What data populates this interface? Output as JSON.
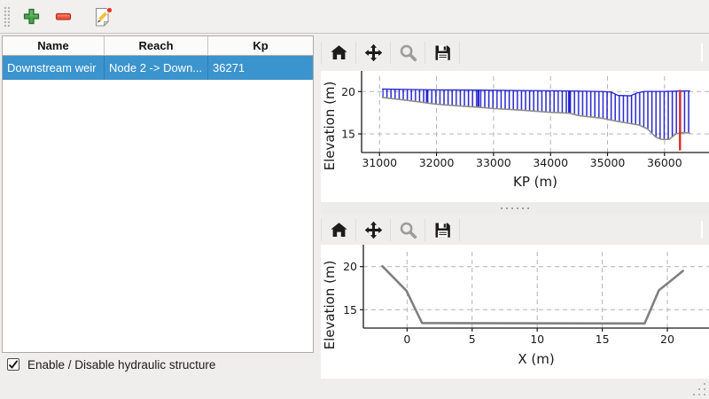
{
  "window": {
    "background": "#efeeec"
  },
  "main_toolbar": {
    "buttons": [
      {
        "label": "add",
        "icon": "plus-icon",
        "color": "#46a24c"
      },
      {
        "label": "remove",
        "icon": "minus-icon",
        "color": "#f05238"
      },
      {
        "label": "edit",
        "icon": "edit-icon",
        "color": "#f3c13a"
      }
    ]
  },
  "table": {
    "columns": [
      "Name",
      "Reach",
      "Kp"
    ],
    "rows": [
      {
        "name": "Downstream weir",
        "reach": "Node 2 -> Down...",
        "kp": "36271",
        "selected": true
      }
    ],
    "selection_color": "#3b94cd"
  },
  "footer": {
    "checkbox_label": "Enable / Disable hydraulic structure",
    "checked": true
  },
  "plot_toolbar": {
    "icons": [
      "home-icon",
      "pan-icon",
      "zoom-icon",
      "save-icon"
    ]
  },
  "chart_data": [
    {
      "type": "area",
      "title": "",
      "xlabel": "KP (m)",
      "ylabel": "Elevation (m)",
      "xticks": [
        31000,
        32000,
        33000,
        34000,
        35000,
        36000
      ],
      "yticks": [
        20,
        15
      ],
      "xlim": [
        30685,
        36780
      ],
      "ylim": [
        12.8,
        22.44
      ],
      "grid": true,
      "legend": "none",
      "hatch_color": "#2424cf",
      "fill_between": true,
      "series": [
        {
          "name": "section-top-profile",
          "color": "#2424cf",
          "width": 1.3,
          "points": [
            [
              31050,
              20.3
            ],
            [
              31500,
              20.25
            ],
            [
              32000,
              20.2
            ],
            [
              32735,
              20.18
            ],
            [
              33500,
              20.12
            ],
            [
              34325,
              20.08
            ],
            [
              34900,
              20.0
            ],
            [
              35060,
              19.95
            ],
            [
              35180,
              19.55
            ],
            [
              35400,
              19.5
            ],
            [
              35520,
              19.85
            ],
            [
              35650,
              20.02
            ],
            [
              36000,
              20.02
            ],
            [
              36200,
              20.05
            ],
            [
              36440,
              20.08
            ]
          ]
        },
        {
          "name": "bed-profile",
          "color": "#8e8e86",
          "width": 1.6,
          "points": [
            [
              31050,
              19.3
            ],
            [
              31500,
              18.95
            ],
            [
              32000,
              18.5
            ],
            [
              32300,
              18.35
            ],
            [
              32735,
              18.15
            ],
            [
              33000,
              18.0
            ],
            [
              33500,
              17.8
            ],
            [
              34000,
              17.55
            ],
            [
              34325,
              17.45
            ],
            [
              34500,
              17.15
            ],
            [
              34900,
              16.85
            ],
            [
              35200,
              16.45
            ],
            [
              35550,
              16.05
            ],
            [
              35700,
              15.6
            ],
            [
              35850,
              14.6
            ],
            [
              35950,
              14.35
            ],
            [
              36080,
              14.35
            ],
            [
              36200,
              15.0
            ],
            [
              36320,
              15.15
            ],
            [
              36440,
              15.1
            ]
          ]
        }
      ],
      "section_lines": [
        [
          31830,
          20.22,
          18.6
        ],
        [
          32735,
          20.18,
          18.15
        ],
        [
          34325,
          20.08,
          17.45
        ]
      ],
      "marker_line": {
        "x": 36271,
        "y_top": 20.2,
        "y_bottom": 13.05,
        "color": "#dc2b2b",
        "name": "structure-position-line"
      }
    },
    {
      "type": "line",
      "title": "",
      "xlabel": "X (m)",
      "ylabel": "Elevation (m)",
      "xticks": [
        0,
        5,
        10,
        15,
        20
      ],
      "yticks": [
        20,
        15
      ],
      "xlim": [
        -3.36,
        23.2
      ],
      "ylim": [
        12.87,
        22.54
      ],
      "grid": true,
      "legend": "none",
      "series": [
        {
          "name": "cross-section-profile",
          "color": "#808080",
          "width": 2.6,
          "points": [
            [
              -1.9,
              20.05
            ],
            [
              -0.05,
              17.2
            ],
            [
              1.15,
              13.45
            ],
            [
              18.25,
              13.4
            ],
            [
              19.35,
              17.25
            ],
            [
              20.3,
              18.4
            ],
            [
              21.2,
              19.5
            ]
          ]
        }
      ]
    }
  ]
}
